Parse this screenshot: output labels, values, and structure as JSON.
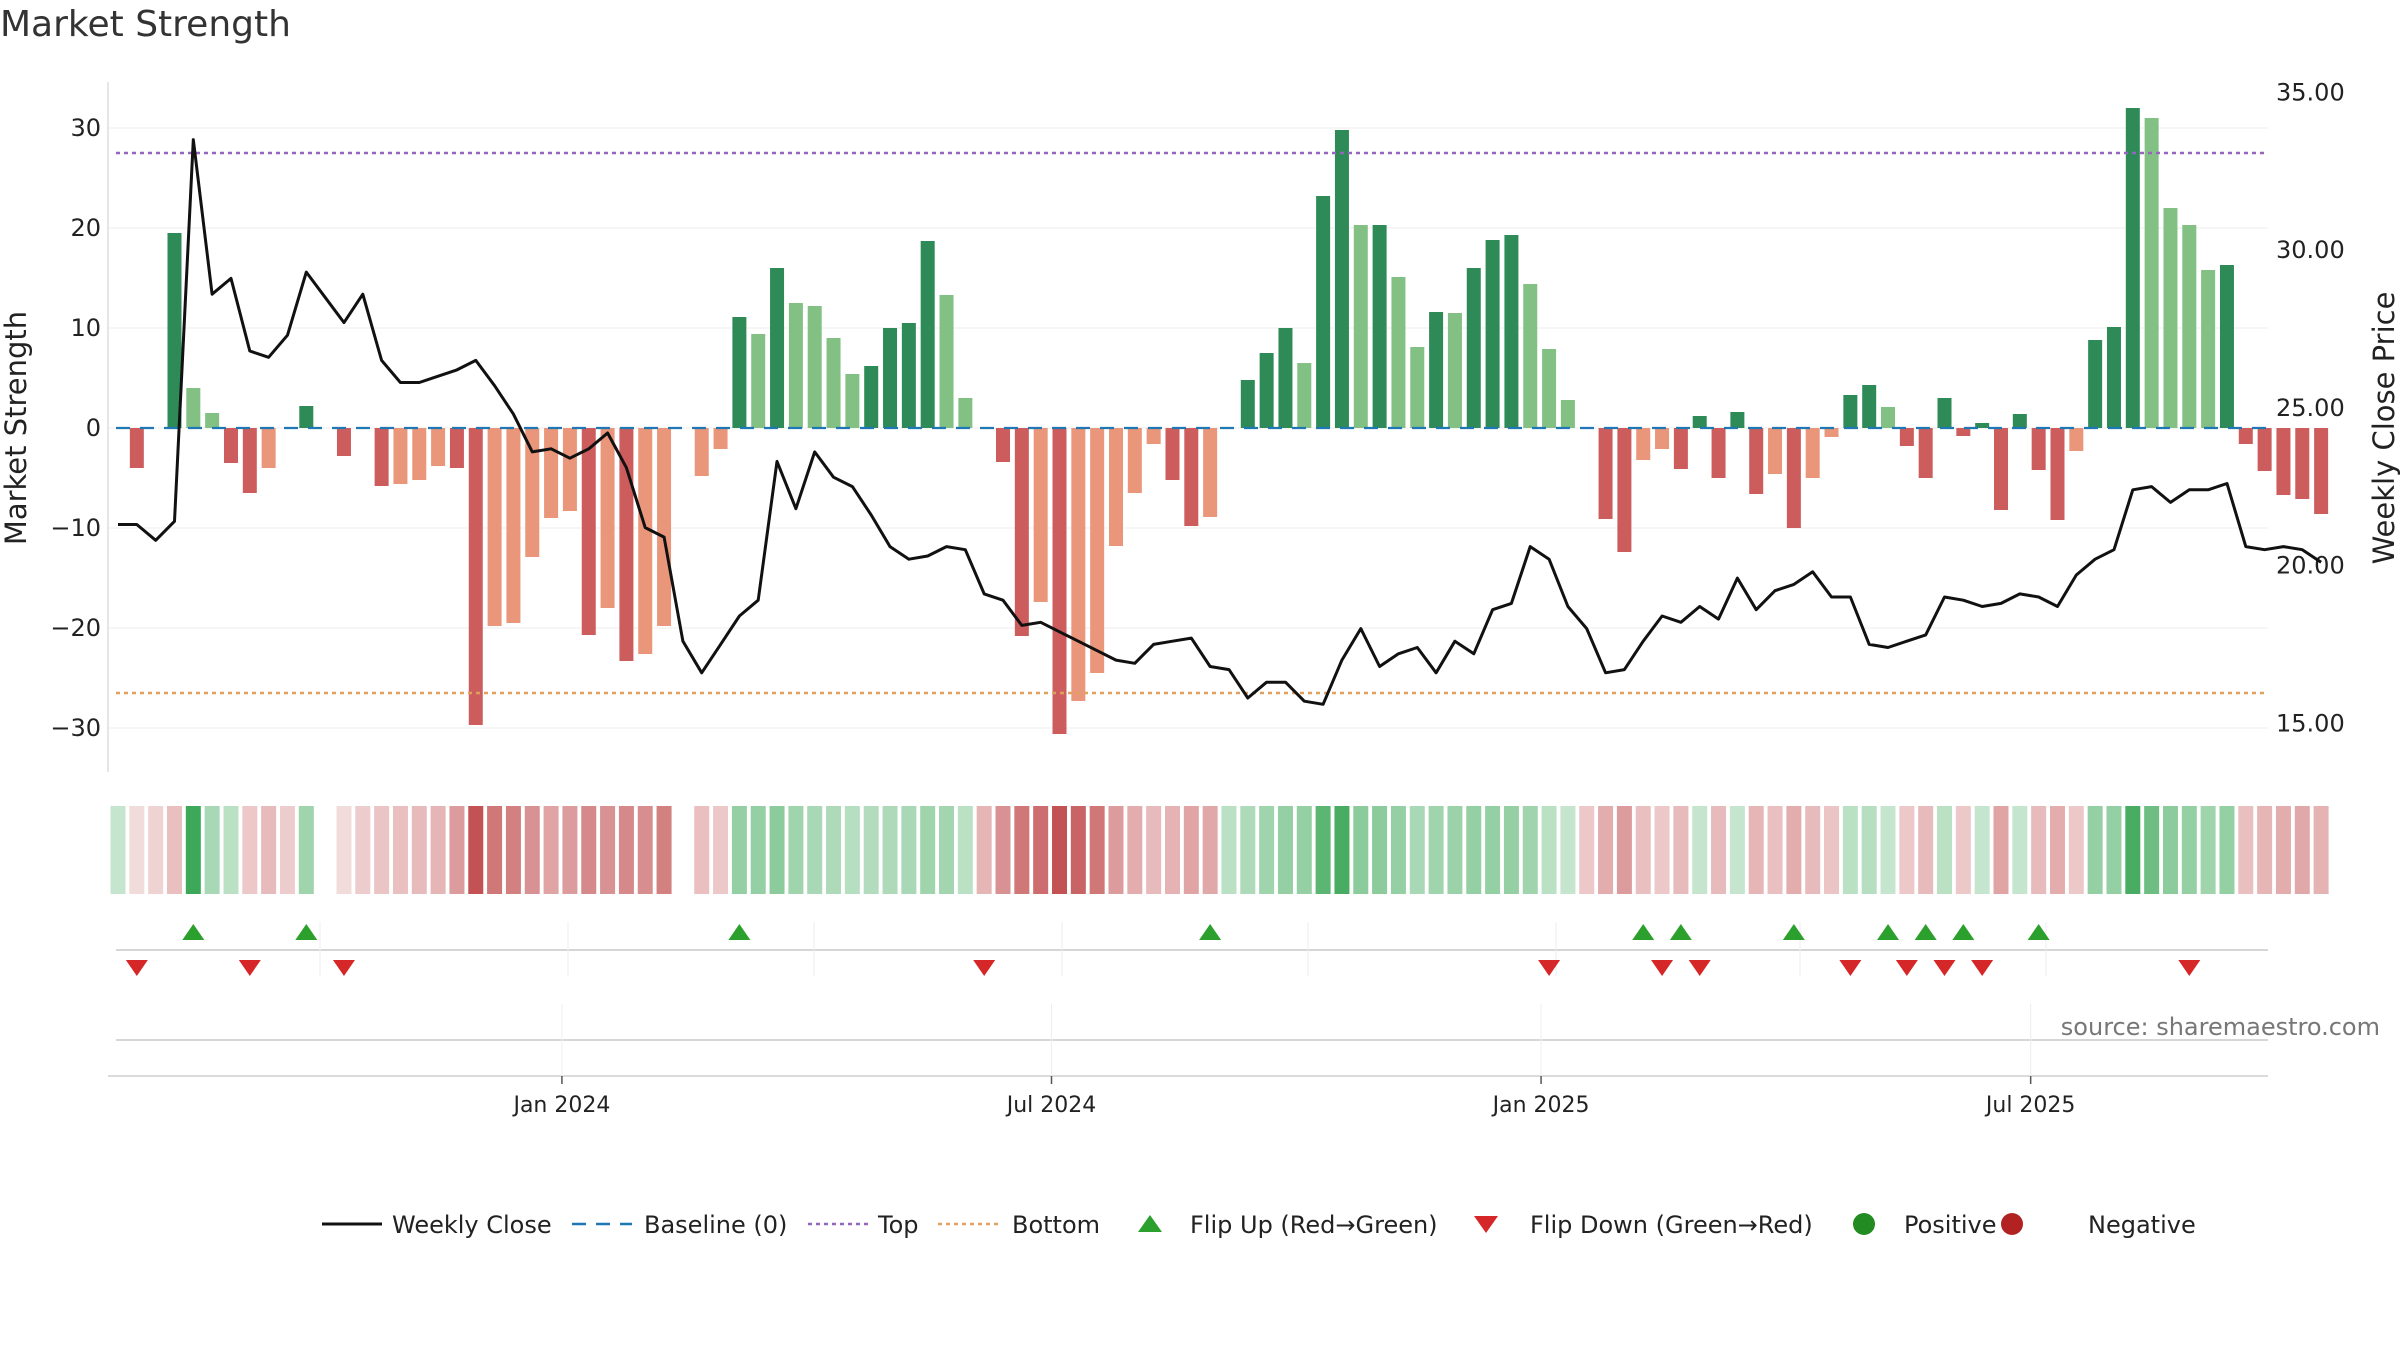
{
  "title": "Market Strength",
  "source": "source: sharemaestro.com",
  "colors": {
    "strong_green": "#2e8b57",
    "light_green": "#82c084",
    "strong_red": "#cd5c5c",
    "light_red": "#e9967a",
    "close_line": "#111111",
    "baseline": "#1f77b4",
    "top": "#9467bd",
    "bottom": "#e0a060",
    "flip_up": "#2ca02c",
    "flip_down": "#d62728",
    "positive": "#228b22",
    "negative": "#b22222"
  },
  "chart_data": {
    "type": "bar+line",
    "title": "Market Strength",
    "ylabel": "Market Strength",
    "y2label": "Weekly Close Price",
    "ylim": [
      -34,
      35
    ],
    "y2lim": [
      13.5,
      35.5
    ],
    "yticks": [
      30,
      20,
      10,
      0,
      -10,
      -20,
      -30
    ],
    "ytick_labels": [
      "30",
      "20",
      "10",
      "0",
      "−10",
      "−20",
      "−30"
    ],
    "y2ticks": [
      35,
      30,
      25,
      20,
      15
    ],
    "y2tick_labels": [
      "35.00",
      "30.00",
      "25.00",
      "20.00",
      "15.00"
    ],
    "xtick_weeks": [
      24,
      50,
      76,
      102
    ],
    "xtick_labels": [
      "Jan 2024",
      "Jul 2024",
      "Jan 2025",
      "Jul 2025"
    ],
    "top": 27.5,
    "bottom": -26.5,
    "baseline": 0,
    "strength": [
      0,
      -4,
      0,
      19.5,
      4,
      1.5,
      -3.5,
      -6.5,
      -4,
      0,
      2.2,
      0,
      -2.8,
      0,
      -5.8,
      -5.6,
      -5.2,
      -3.8,
      -4,
      -29.7,
      -19.8,
      -19.5,
      -12.9,
      -9,
      -8.3,
      -20.7,
      -18,
      -23.3,
      -22.6,
      -19.8,
      0,
      -4.8,
      -2.1,
      11.1,
      9.4,
      16,
      12.5,
      12.2,
      9,
      5.4,
      6.2,
      10,
      10.5,
      18.7,
      13.3,
      3,
      0,
      -3.4,
      -20.8,
      -17.4,
      -30.6,
      -27.3,
      -24.5,
      -11.8,
      -6.5,
      -1.6,
      -5.2,
      -9.8,
      -8.9,
      0,
      4.8,
      7.5,
      10,
      6.5,
      23.2,
      29.8,
      20.3,
      20.3,
      15.1,
      8.1,
      11.6,
      11.5,
      16,
      18.8,
      19.3,
      14.4,
      7.9,
      2.8,
      0,
      -9.1,
      -12.4,
      -3.2,
      -2.1,
      -4.1,
      1.2,
      -5,
      1.6,
      -6.6,
      -4.6,
      -10,
      -5,
      -0.9,
      3.3,
      4.3,
      2.1,
      -1.8,
      -5,
      3,
      -0.8,
      0.5,
      -8.2,
      1.4,
      -4.2,
      -9.2,
      -2.3,
      8.8,
      10.1,
      32,
      31,
      22,
      20.3,
      15.8,
      16.3,
      -1.6,
      -4.3,
      -6.7,
      -7.1,
      -8.6
    ],
    "strength_shade": [
      "",
      "sr",
      "",
      "sg",
      "lg",
      "lg",
      "sr",
      "sr",
      "lr",
      "",
      "sg",
      "",
      "sr",
      "",
      "sr",
      "lr",
      "lr",
      "lr",
      "sr",
      "sr",
      "lr",
      "lr",
      "lr",
      "lr",
      "lr",
      "sr",
      "lr",
      "sr",
      "lr",
      "lr",
      "",
      "lr",
      "lr",
      "sg",
      "lg",
      "sg",
      "lg",
      "lg",
      "lg",
      "lg",
      "sg",
      "sg",
      "sg",
      "sg",
      "lg",
      "lg",
      "",
      "sr",
      "sr",
      "lr",
      "sr",
      "lr",
      "lr",
      "lr",
      "lr",
      "lr",
      "sr",
      "sr",
      "lr",
      "",
      "sg",
      "sg",
      "sg",
      "lg",
      "sg",
      "sg",
      "lg",
      "sg",
      "lg",
      "lg",
      "sg",
      "lg",
      "sg",
      "sg",
      "sg",
      "lg",
      "lg",
      "lg",
      "",
      "sr",
      "sr",
      "lr",
      "lr",
      "sr",
      "sg",
      "sr",
      "sg",
      "sr",
      "lr",
      "sr",
      "lr",
      "lr",
      "sg",
      "sg",
      "lg",
      "sr",
      "sr",
      "sg",
      "sr",
      "sg",
      "sr",
      "sg",
      "sr",
      "sr",
      "lr",
      "sg",
      "sg",
      "sg",
      "lg",
      "lg",
      "lg",
      "lg",
      "sg",
      "sr",
      "sr",
      "sr",
      "sr",
      "sr"
    ],
    "weekly_close": [
      21.3,
      21.3,
      20.8,
      21.4,
      33.5,
      28.6,
      29.1,
      26.8,
      26.6,
      27.3,
      29.3,
      28.5,
      27.7,
      28.6,
      26.5,
      25.8,
      25.8,
      26.0,
      26.2,
      26.5,
      25.7,
      24.8,
      23.6,
      23.7,
      23.4,
      23.7,
      24.2,
      23.1,
      21.2,
      20.9,
      17.6,
      16.6,
      17.5,
      18.4,
      18.9,
      23.3,
      21.8,
      23.6,
      22.8,
      22.5,
      21.6,
      20.6,
      20.2,
      20.3,
      20.6,
      20.5,
      19.1,
      18.9,
      18.1,
      18.2,
      17.9,
      17.6,
      17.3,
      17.0,
      16.9,
      17.5,
      17.6,
      17.7,
      16.8,
      16.7,
      15.8,
      16.3,
      16.3,
      15.7,
      15.6,
      17.0,
      18.0,
      16.8,
      17.2,
      17.4,
      16.6,
      17.6,
      17.2,
      18.6,
      18.8,
      20.6,
      20.2,
      18.7,
      18.0,
      16.6,
      16.7,
      17.6,
      18.4,
      18.2,
      18.7,
      18.3,
      19.6,
      18.6,
      19.2,
      19.4,
      19.8,
      19.0,
      19.0,
      17.5,
      17.4,
      17.6,
      17.8,
      19.0,
      18.9,
      18.7,
      18.8,
      19.1,
      19.0,
      18.7,
      19.7,
      20.2,
      20.5,
      22.4,
      22.5,
      22.0,
      22.4,
      22.4,
      22.6,
      20.6,
      20.5,
      20.6,
      20.5,
      20.1
    ],
    "heat_strip": [
      0.3,
      0.2,
      0.25,
      0.35,
      1.0,
      0.45,
      0.35,
      0.3,
      0.38,
      0.28,
      0.5,
      -1,
      0.2,
      0.28,
      0.32,
      0.35,
      0.38,
      0.4,
      0.55,
      0.95,
      0.75,
      0.7,
      0.6,
      0.5,
      0.55,
      0.65,
      0.6,
      0.65,
      0.62,
      0.7,
      -1,
      0.35,
      0.3,
      0.55,
      0.55,
      0.6,
      0.5,
      0.45,
      0.42,
      0.38,
      0.4,
      0.42,
      0.45,
      0.5,
      0.48,
      0.35,
      0.4,
      0.6,
      0.75,
      0.8,
      0.95,
      0.85,
      0.75,
      0.55,
      0.45,
      0.38,
      0.42,
      0.5,
      0.48,
      0.35,
      0.42,
      0.5,
      0.55,
      0.55,
      0.85,
      0.95,
      0.6,
      0.6,
      0.55,
      0.45,
      0.5,
      0.52,
      0.55,
      0.55,
      0.55,
      0.5,
      0.35,
      0.3,
      0.3,
      0.45,
      0.55,
      0.35,
      0.3,
      0.38,
      0.3,
      0.38,
      0.3,
      0.4,
      0.35,
      0.45,
      0.38,
      0.32,
      0.35,
      0.38,
      0.3,
      0.3,
      0.38,
      0.35,
      0.3,
      0.3,
      0.5,
      0.3,
      0.38,
      0.45,
      0.3,
      0.55,
      0.55,
      0.95,
      0.75,
      0.6,
      0.55,
      0.5,
      0.55,
      0.35,
      0.4,
      0.45,
      0.48,
      0.42
    ],
    "heat_sign": [
      1,
      -1,
      -1,
      -1,
      1,
      1,
      1,
      -1,
      -1,
      -1,
      1,
      0,
      -1,
      -1,
      -1,
      -1,
      -1,
      -1,
      -1,
      -1,
      -1,
      -1,
      -1,
      -1,
      -1,
      -1,
      -1,
      -1,
      -1,
      -1,
      0,
      -1,
      -1,
      1,
      1,
      1,
      1,
      1,
      1,
      1,
      1,
      1,
      1,
      1,
      1,
      1,
      -1,
      -1,
      -1,
      -1,
      -1,
      -1,
      -1,
      -1,
      -1,
      -1,
      -1,
      -1,
      -1,
      1,
      1,
      1,
      1,
      1,
      1,
      1,
      1,
      1,
      1,
      1,
      1,
      1,
      1,
      1,
      1,
      1,
      1,
      1,
      -1,
      -1,
      -1,
      -1,
      -1,
      -1,
      1,
      -1,
      1,
      -1,
      -1,
      -1,
      -1,
      -1,
      1,
      1,
      1,
      -1,
      -1,
      1,
      -1,
      1,
      -1,
      1,
      -1,
      -1,
      -1,
      1,
      1,
      1,
      1,
      1,
      1,
      1,
      1,
      -1,
      -1,
      -1,
      -1,
      -1
    ],
    "flip_up_weeks": [
      4,
      10,
      33,
      58,
      81,
      83,
      89,
      94,
      96,
      98,
      102
    ],
    "flip_down_weeks": [
      1,
      7,
      12,
      46,
      76,
      82,
      84,
      92,
      95,
      97,
      99,
      110
    ],
    "legend": [
      {
        "label": "Weekly Close",
        "kind": "line"
      },
      {
        "label": "Baseline (0)",
        "kind": "dash"
      },
      {
        "label": "Top",
        "kind": "dot-purple"
      },
      {
        "label": "Bottom",
        "kind": "dot-orange"
      },
      {
        "label": "Flip Up (Red→Green)",
        "kind": "tri-up"
      },
      {
        "label": "Flip Down (Green→Red)",
        "kind": "tri-down"
      },
      {
        "label": "Positive",
        "kind": "dot-green"
      },
      {
        "label": "Negative",
        "kind": "dot-red"
      }
    ]
  }
}
